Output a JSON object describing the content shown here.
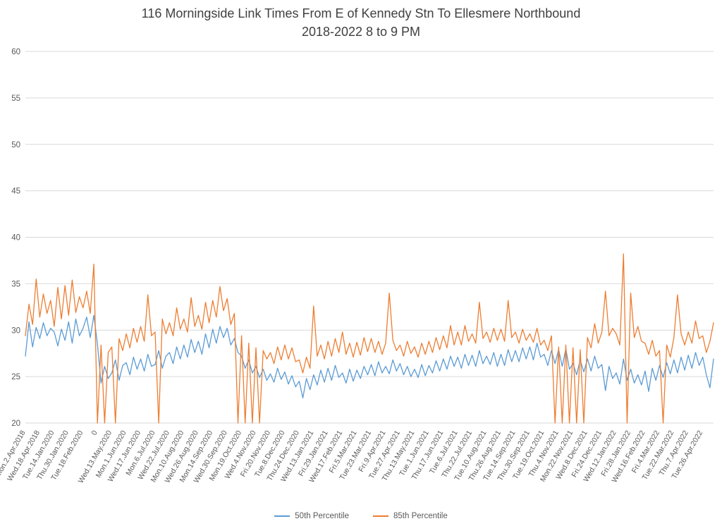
{
  "chart_data": {
    "type": "line",
    "title": "116 Morningside Link Times From E of Kennedy Stn To Ellesmere Northbound",
    "subtitle": "2018-2022 8 to 9 PM",
    "ylim": [
      20,
      60
    ],
    "y_ticks": [
      20,
      25,
      30,
      35,
      40,
      45,
      50,
      55,
      60
    ],
    "grid": true,
    "legend_position": "bottom",
    "points_per_category": 4,
    "categories": [
      "Mon.2.Apr.2018",
      "Wed.18.Apr.2018",
      "Tue.14.Jan.2020",
      "Thu.30.Jan.2020",
      "Tue.18.Feb.2020",
      "0",
      "Wed.13.May.2020",
      "Mon.1.Jun.2020",
      "Wed.17.Jun.2020",
      "Mon.6.Jul.2020",
      "Wed.22.Jul.2020",
      "Mon.10.Aug.2020",
      "Wed.26.Aug.2020",
      "Mon.14.Sep.2020",
      "Wed.30.Sep.2020",
      "Mon.19.Oct.2020",
      "Wed.4.Nov.2020",
      "Fri.20.Nov.2020",
      "Tue.8.Dec.2020",
      "Thu.24.Dec.2020",
      "Wed.13.Jan.2021",
      "Fri.29.Jan.2021",
      "Wed.17.Feb.2021",
      "Fri.5.Mar.2021",
      "Tue.23.Mar.2021",
      "Fri.9.Apr.2021",
      "Tue.27.Apr.2021",
      "Thu.13.May.2021",
      "Tue.1.Jun.2021",
      "Thu.17.Jun.2021",
      "Tue.6.Jul.2021",
      "Thu.22.Jul.2021",
      "Tue.10.Aug.2021",
      "Thu.26.Aug.2021",
      "Tue.14.Sep.2021",
      "Thu.30.Sep.2021",
      "Tue.19.Oct.2021",
      "Thu.4.Nov.2021",
      "Mon.22.Nov.2021",
      "Wed.8.Dec.2021",
      "Fri.24.Dec.2021",
      "Wed.12.Jan.2022",
      "Fri.28.Jan.2022",
      "Wed.16.Feb.2022",
      "Fri.4.Mar.2022",
      "Tue.22.Mar.2022",
      "Thu.7.Apr.2022",
      "Tue.26.Apr.2022"
    ],
    "series": [
      {
        "name": "50th Percentile",
        "color": "#5B9BD5",
        "values": [
          27.2,
          30.9,
          28.2,
          30.3,
          29.1,
          30.8,
          29.4,
          30.2,
          29.8,
          28.3,
          30.1,
          28.9,
          30.9,
          28.6,
          31.2,
          29.4,
          30.2,
          31.4,
          29.2,
          31.6,
          28.5,
          24.3,
          26.1,
          24.8,
          25.4,
          26.8,
          24.6,
          26.2,
          26.5,
          25.2,
          27.1,
          25.8,
          26.9,
          25.6,
          27.4,
          26.1,
          26.3,
          27.8,
          25.9,
          27.2,
          27.6,
          26.4,
          28.2,
          26.9,
          28.4,
          27.1,
          29.0,
          27.6,
          28.8,
          27.4,
          29.6,
          28.1,
          30.1,
          28.6,
          30.4,
          29.2,
          30.2,
          28.4,
          29.1,
          27.6,
          27.2,
          25.9,
          26.8,
          25.4,
          26.1,
          24.9,
          25.8,
          24.6,
          25.3,
          24.4,
          25.9,
          24.7,
          25.5,
          24.2,
          25.1,
          23.9,
          24.5,
          22.7,
          24.8,
          23.6,
          25.2,
          24.1,
          25.7,
          24.4,
          25.9,
          24.6,
          26.2,
          24.9,
          25.4,
          24.3,
          25.8,
          24.5,
          25.7,
          24.8,
          26.1,
          25.2,
          26.3,
          25.1,
          26.6,
          25.4,
          26.1,
          25.3,
          26.8,
          25.6,
          26.4,
          25.2,
          26.1,
          25.0,
          25.8,
          24.9,
          26.3,
          25.1,
          26.2,
          25.4,
          26.7,
          25.6,
          26.9,
          25.8,
          27.2,
          26.1,
          27.1,
          25.9,
          27.4,
          26.2,
          27.3,
          26.1,
          27.8,
          26.4,
          27.2,
          26.3,
          27.6,
          26.1,
          27.4,
          26.2,
          27.9,
          26.6,
          27.8,
          26.6,
          28.1,
          26.9,
          28.2,
          26.8,
          28.6,
          27.1,
          27.4,
          26.2,
          27.8,
          26.4,
          27.9,
          26.1,
          28.0,
          25.8,
          26.4,
          25.2,
          26.8,
          25.5,
          26.9,
          25.6,
          27.2,
          25.9,
          26.3,
          23.5,
          26.1,
          24.8,
          25.4,
          24.2,
          26.9,
          24.6,
          25.8,
          24.3,
          25.2,
          24.1,
          25.6,
          23.4,
          25.9,
          24.6,
          26.2,
          24.9,
          26.5,
          25.3,
          26.8,
          25.4,
          27.1,
          25.7,
          27.3,
          25.9,
          27.6,
          26.2,
          27.1,
          25.2,
          23.8,
          26.9
        ]
      },
      {
        "name": "85th Percentile",
        "color": "#ED7D31",
        "values": [
          29.4,
          32.8,
          30.6,
          35.5,
          31.4,
          33.9,
          31.8,
          33.2,
          30.4,
          34.6,
          31.2,
          34.8,
          31.6,
          35.4,
          31.9,
          33.6,
          32.4,
          34.2,
          31.8,
          37.1,
          0,
          28.4,
          0,
          27.6,
          28.2,
          0,
          29.1,
          27.8,
          29.6,
          28.1,
          30.2,
          28.7,
          30.4,
          28.8,
          33.8,
          29.4,
          29.8,
          0,
          31.2,
          29.6,
          30.8,
          29.4,
          32.4,
          30.1,
          31.2,
          29.8,
          33.5,
          30.4,
          31.6,
          30.1,
          33.0,
          30.8,
          33.2,
          31.4,
          34.7,
          32.1,
          33.4,
          30.6,
          31.8,
          0,
          29.4,
          0,
          28.6,
          0,
          28.1,
          0,
          27.8,
          26.9,
          27.6,
          26.4,
          28.2,
          26.8,
          28.4,
          26.9,
          28.1,
          26.6,
          26.8,
          25.4,
          27.1,
          25.9,
          32.6,
          27.2,
          28.4,
          26.9,
          28.8,
          27.2,
          29.1,
          27.6,
          29.8,
          27.4,
          28.6,
          27.1,
          28.7,
          27.3,
          29.2,
          27.7,
          29.1,
          27.6,
          28.8,
          27.4,
          28.6,
          34.0,
          28.9,
          27.8,
          28.4,
          27.2,
          28.8,
          27.5,
          28.2,
          27.1,
          28.6,
          27.4,
          28.8,
          27.6,
          29.2,
          27.9,
          29.4,
          28.1,
          30.5,
          28.4,
          29.8,
          28.4,
          30.5,
          28.8,
          29.6,
          28.6,
          33.0,
          29.1,
          29.8,
          28.7,
          30.2,
          28.9,
          30.1,
          28.8,
          33.2,
          29.2,
          29.8,
          28.6,
          30.1,
          28.9,
          29.6,
          28.7,
          30.2,
          28.4,
          28.9,
          27.8,
          29.4,
          0,
          28.2,
          0,
          28.4,
          0,
          28.1,
          0,
          27.9,
          0,
          29.2,
          28.1,
          30.7,
          28.6,
          29.8,
          34.2,
          29.4,
          30.2,
          29.6,
          28.4,
          38.2,
          0,
          34.0,
          29.2,
          30.4,
          28.8,
          28.6,
          27.4,
          28.9,
          27.2,
          27.8,
          0,
          28.4,
          27.1,
          29.2,
          33.8,
          29.6,
          28.4,
          29.8,
          28.6,
          31.0,
          29.1,
          29.4,
          27.6,
          28.8,
          30.8
        ]
      }
    ]
  },
  "colors": {
    "gridline": "#d9d9d9",
    "axis_text": "#595959",
    "title_text": "#404040",
    "background": "#ffffff"
  }
}
